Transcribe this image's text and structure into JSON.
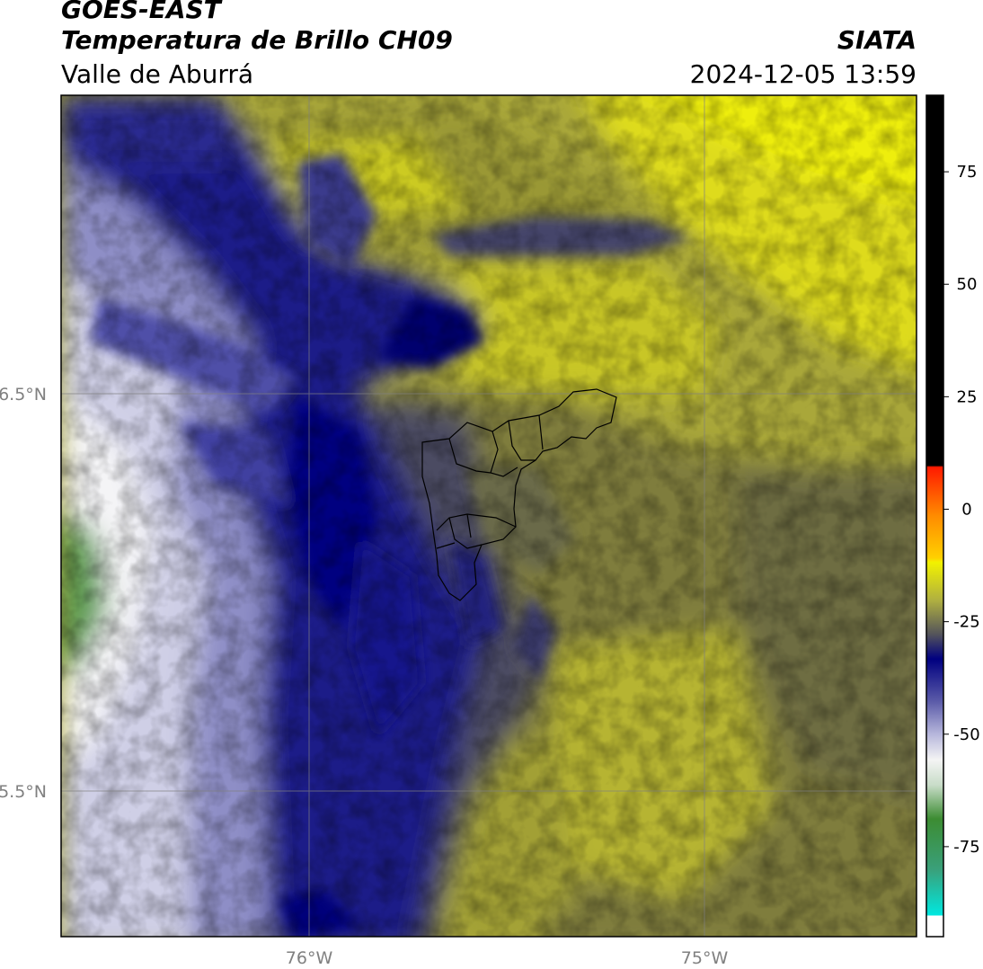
{
  "header": {
    "satellite": "GOES-EAST",
    "product": "Temperatura de Brillo CH09",
    "region": "Valle de Aburrá",
    "agency": "SIATA",
    "datetime": "2024-12-05 13:59"
  },
  "map": {
    "lat_ticks": [
      {
        "value": 6.5,
        "label": "6.5°N"
      },
      {
        "value": 5.5,
        "label": "5.5°N"
      }
    ],
    "lon_ticks": [
      {
        "value": -76.0,
        "label": "76°W"
      },
      {
        "value": -75.0,
        "label": "75°W"
      }
    ],
    "gridlines": true,
    "basemap_boundary": "Valle de Aburrá municipalities outline"
  },
  "colorbar": {
    "ticks": [
      "75",
      "50",
      "25",
      "0",
      "-25",
      "-50",
      "-75"
    ],
    "tick_values": [
      75,
      50,
      25,
      0,
      -25,
      -50,
      -75
    ],
    "range": [
      -95,
      92
    ],
    "colors": {
      "black": "#000000",
      "red": "#ff1a00",
      "orange": "#ff8c00",
      "yellow": "#f2f200",
      "olive": "#9a9a30",
      "gray": "#55555a",
      "navy": "#000080",
      "lavender": "#a8a8d0",
      "white": "#f4f4f4",
      "green": "#3c8c32",
      "cyan": "#00e8e0"
    }
  }
}
